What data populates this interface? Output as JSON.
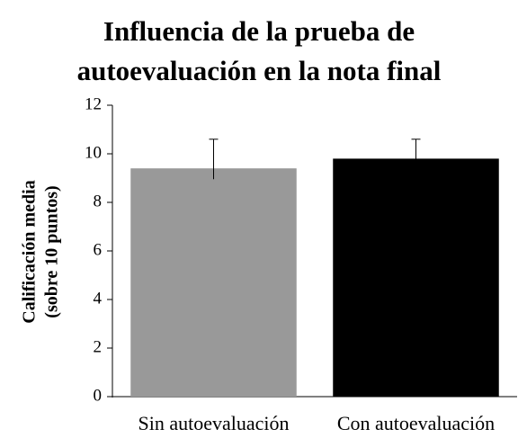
{
  "chart_data": {
    "type": "bar",
    "title": [
      "Influencia de la prueba de",
      "autoevaluación en la nota final"
    ],
    "y_label": [
      "Calificación media",
      "(sobre 10 puntos)"
    ],
    "categories": [
      "Sin autoevaluación",
      "Con autoevaluación"
    ],
    "values": [
      9.4,
      9.8
    ],
    "errors": [
      1.2,
      0.8
    ],
    "colors": [
      "#999999",
      "#000000"
    ],
    "ylim": [
      0,
      12
    ],
    "yticks": [
      0,
      2,
      4,
      6,
      8,
      10,
      12
    ],
    "grid": false
  }
}
